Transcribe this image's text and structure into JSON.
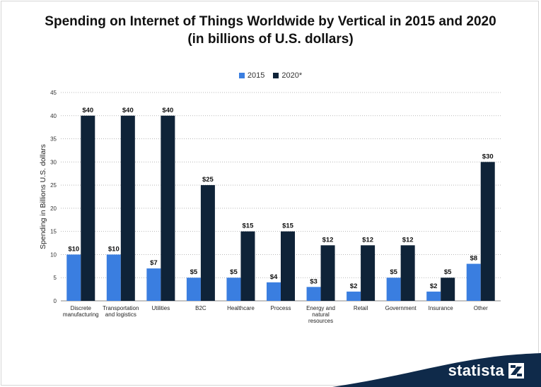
{
  "chart_data": {
    "type": "bar",
    "title": "Spending on Internet of Things Worldwide by Vertical in 2015 and 2020",
    "subtitle": "(in billions of U.S. dollars)",
    "xlabel": "",
    "ylabel": "Spending in Billions U.S. dollars",
    "ylim": [
      0,
      45
    ],
    "yticks": [
      0,
      5,
      10,
      15,
      20,
      25,
      30,
      35,
      40,
      45
    ],
    "grid": true,
    "legend_position": "top",
    "categories": [
      [
        "Discrete",
        "manufacturing"
      ],
      [
        "Transportation",
        "and logistics"
      ],
      [
        "Utilities"
      ],
      [
        "B2C"
      ],
      [
        "Healthcare"
      ],
      [
        "Process"
      ],
      [
        "Energy and",
        "natural",
        "resources"
      ],
      [
        "Retail"
      ],
      [
        "Government"
      ],
      [
        "Insurance"
      ],
      [
        "Other"
      ]
    ],
    "series": [
      {
        "name": "2015",
        "color": "#3a7ee0",
        "values": [
          10,
          10,
          7,
          5,
          5,
          4,
          3,
          2,
          5,
          2,
          8
        ],
        "labels": [
          "$10",
          "$10",
          "$7",
          "$5",
          "$5",
          "$4",
          "$3",
          "$2",
          "$5",
          "$2",
          "$8"
        ]
      },
      {
        "name": "2020*",
        "color": "#0f2338",
        "values": [
          40,
          40,
          40,
          25,
          15,
          15,
          12,
          12,
          12,
          5,
          30
        ],
        "labels": [
          "$40",
          "$40",
          "$40",
          "$25",
          "$15",
          "$15",
          "$12",
          "$12",
          "$12",
          "$5",
          "$30"
        ]
      }
    ]
  },
  "branding": {
    "name": "statista",
    "band_color": "#0f2a4a",
    "icon": "statista-logo-icon"
  }
}
